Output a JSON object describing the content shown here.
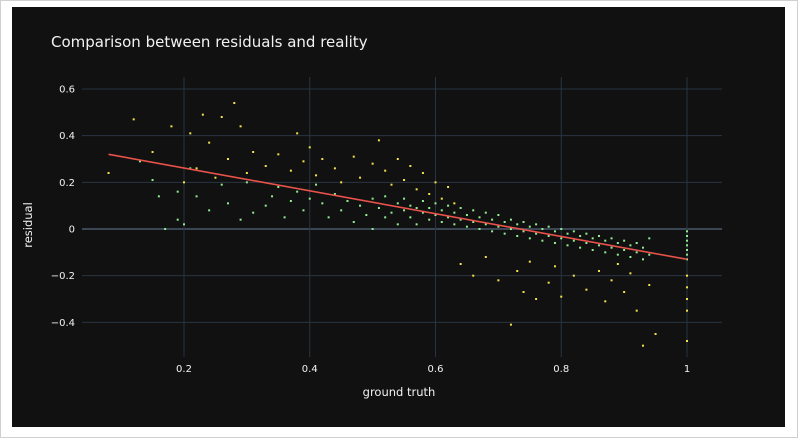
{
  "colors": {
    "background": "#111111",
    "grid": "#283442",
    "zeroline": "#3a4654",
    "text": "#f2f2f2",
    "green_points": "#90ee90",
    "yellow_points": "#f5e14a",
    "trend_line": "#e8524a"
  },
  "chart_data": {
    "type": "scatter",
    "title": "Comparison between residuals and reality",
    "xlabel": "ground truth",
    "ylabel": "residual",
    "xlim": [
      0.0,
      1.05
    ],
    "ylim": [
      -0.55,
      0.62
    ],
    "x_ticks": [
      0.2,
      0.4,
      0.6,
      0.8,
      1
    ],
    "x_tick_labels": [
      "0.2",
      "0.4",
      "0.6",
      "0.8",
      "1"
    ],
    "y_ticks": [
      -0.4,
      -0.2,
      0,
      0.2,
      0.4,
      0.6
    ],
    "y_tick_labels": [
      "−0.4",
      "−0.2",
      "0",
      "0.2",
      "0.4",
      "0.6"
    ],
    "grid": true,
    "legend": "none",
    "series": [
      {
        "color": "green_points",
        "points": [
          [
            0.13,
            0.29
          ],
          [
            0.15,
            0.21
          ],
          [
            0.16,
            0.14
          ],
          [
            0.17,
            0.0
          ],
          [
            0.19,
            0.16
          ],
          [
            0.19,
            0.04
          ],
          [
            0.2,
            0.02
          ],
          [
            0.21,
            0.26
          ],
          [
            0.22,
            0.14
          ],
          [
            0.24,
            0.08
          ],
          [
            0.26,
            0.19
          ],
          [
            0.27,
            0.11
          ],
          [
            0.29,
            0.04
          ],
          [
            0.3,
            0.2
          ],
          [
            0.31,
            0.07
          ],
          [
            0.33,
            0.1
          ],
          [
            0.34,
            0.14
          ],
          [
            0.35,
            0.18
          ],
          [
            0.36,
            0.05
          ],
          [
            0.37,
            0.12
          ],
          [
            0.38,
            0.16
          ],
          [
            0.39,
            0.08
          ],
          [
            0.4,
            0.13
          ],
          [
            0.41,
            0.19
          ],
          [
            0.42,
            0.11
          ],
          [
            0.43,
            0.05
          ],
          [
            0.44,
            0.15
          ],
          [
            0.45,
            0.08
          ],
          [
            0.46,
            0.12
          ],
          [
            0.47,
            0.03
          ],
          [
            0.48,
            0.1
          ],
          [
            0.49,
            0.06
          ],
          [
            0.5,
            0.13
          ],
          [
            0.5,
            0.0
          ],
          [
            0.51,
            0.09
          ],
          [
            0.52,
            0.05
          ],
          [
            0.52,
            0.14
          ],
          [
            0.53,
            0.07
          ],
          [
            0.54,
            0.11
          ],
          [
            0.54,
            0.02
          ],
          [
            0.55,
            0.08
          ],
          [
            0.55,
            0.13
          ],
          [
            0.56,
            0.05
          ],
          [
            0.56,
            0.1
          ],
          [
            0.57,
            0.09
          ],
          [
            0.57,
            0.02
          ],
          [
            0.58,
            0.07
          ],
          [
            0.58,
            0.12
          ],
          [
            0.59,
            0.04
          ],
          [
            0.59,
            0.09
          ],
          [
            0.6,
            0.06
          ],
          [
            0.6,
            0.11
          ],
          [
            0.61,
            0.03
          ],
          [
            0.61,
            0.08
          ],
          [
            0.62,
            0.05
          ],
          [
            0.62,
            0.1
          ],
          [
            0.63,
            0.02
          ],
          [
            0.63,
            0.07
          ],
          [
            0.64,
            0.04
          ],
          [
            0.64,
            0.09
          ],
          [
            0.65,
            0.01
          ],
          [
            0.65,
            0.06
          ],
          [
            0.66,
            0.03
          ],
          [
            0.66,
            0.08
          ],
          [
            0.67,
            0.0
          ],
          [
            0.67,
            0.05
          ],
          [
            0.68,
            0.02
          ],
          [
            0.68,
            0.07
          ],
          [
            0.69,
            -0.01
          ],
          [
            0.69,
            0.04
          ],
          [
            0.7,
            0.01
          ],
          [
            0.7,
            0.06
          ],
          [
            0.71,
            -0.02
          ],
          [
            0.71,
            0.03
          ],
          [
            0.72,
            0.0
          ],
          [
            0.72,
            0.04
          ],
          [
            0.73,
            -0.03
          ],
          [
            0.73,
            0.02
          ],
          [
            0.74,
            -0.01
          ],
          [
            0.74,
            0.03
          ],
          [
            0.75,
            -0.04
          ],
          [
            0.75,
            0.01
          ],
          [
            0.76,
            -0.02
          ],
          [
            0.76,
            0.02
          ],
          [
            0.77,
            -0.05
          ],
          [
            0.77,
            0.0
          ],
          [
            0.78,
            -0.03
          ],
          [
            0.78,
            0.01
          ],
          [
            0.79,
            -0.06
          ],
          [
            0.79,
            -0.01
          ],
          [
            0.8,
            -0.04
          ],
          [
            0.8,
            0.0
          ],
          [
            0.81,
            -0.07
          ],
          [
            0.81,
            -0.02
          ],
          [
            0.82,
            -0.05
          ],
          [
            0.82,
            -0.01
          ],
          [
            0.83,
            -0.08
          ],
          [
            0.83,
            -0.03
          ],
          [
            0.84,
            -0.06
          ],
          [
            0.84,
            -0.02
          ],
          [
            0.85,
            -0.09
          ],
          [
            0.85,
            -0.04
          ],
          [
            0.86,
            -0.07
          ],
          [
            0.86,
            -0.03
          ],
          [
            0.87,
            -0.1
          ],
          [
            0.87,
            -0.05
          ],
          [
            0.88,
            -0.08
          ],
          [
            0.88,
            -0.04
          ],
          [
            0.89,
            -0.11
          ],
          [
            0.89,
            -0.06
          ],
          [
            0.9,
            -0.09
          ],
          [
            0.9,
            -0.05
          ],
          [
            0.91,
            -0.12
          ],
          [
            0.91,
            -0.07
          ],
          [
            0.92,
            -0.1
          ],
          [
            0.92,
            -0.06
          ],
          [
            0.93,
            -0.13
          ],
          [
            0.93,
            -0.08
          ],
          [
            0.94,
            -0.11
          ],
          [
            0.94,
            -0.04
          ],
          [
            1.0,
            -0.01
          ],
          [
            1.0,
            -0.03
          ],
          [
            1.0,
            -0.05
          ],
          [
            1.0,
            -0.07
          ],
          [
            1.0,
            -0.09
          ],
          [
            1.0,
            -0.11
          ],
          [
            1.0,
            -0.13
          ]
        ]
      },
      {
        "color": "yellow_points",
        "points": [
          [
            0.08,
            0.24
          ],
          [
            0.12,
            0.47
          ],
          [
            0.15,
            0.33
          ],
          [
            0.18,
            0.44
          ],
          [
            0.2,
            0.2
          ],
          [
            0.21,
            0.41
          ],
          [
            0.22,
            0.26
          ],
          [
            0.23,
            0.49
          ],
          [
            0.24,
            0.37
          ],
          [
            0.25,
            0.22
          ],
          [
            0.26,
            0.48
          ],
          [
            0.27,
            0.3
          ],
          [
            0.28,
            0.54
          ],
          [
            0.29,
            0.44
          ],
          [
            0.3,
            0.24
          ],
          [
            0.31,
            0.33
          ],
          [
            0.33,
            0.27
          ],
          [
            0.35,
            0.32
          ],
          [
            0.37,
            0.25
          ],
          [
            0.38,
            0.41
          ],
          [
            0.39,
            0.29
          ],
          [
            0.4,
            0.35
          ],
          [
            0.41,
            0.23
          ],
          [
            0.42,
            0.3
          ],
          [
            0.44,
            0.26
          ],
          [
            0.45,
            0.2
          ],
          [
            0.47,
            0.31
          ],
          [
            0.48,
            0.22
          ],
          [
            0.5,
            0.28
          ],
          [
            0.51,
            0.38
          ],
          [
            0.52,
            0.25
          ],
          [
            0.53,
            0.19
          ],
          [
            0.54,
            0.3
          ],
          [
            0.55,
            0.21
          ],
          [
            0.56,
            0.27
          ],
          [
            0.57,
            0.17
          ],
          [
            0.58,
            0.24
          ],
          [
            0.59,
            0.15
          ],
          [
            0.6,
            0.2
          ],
          [
            0.61,
            0.13
          ],
          [
            0.62,
            0.18
          ],
          [
            0.63,
            0.11
          ],
          [
            0.64,
            -0.15
          ],
          [
            0.66,
            -0.2
          ],
          [
            0.68,
            -0.12
          ],
          [
            0.7,
            -0.22
          ],
          [
            0.72,
            -0.41
          ],
          [
            0.73,
            -0.18
          ],
          [
            0.74,
            -0.27
          ],
          [
            0.75,
            -0.14
          ],
          [
            0.76,
            -0.3
          ],
          [
            0.78,
            -0.23
          ],
          [
            0.79,
            -0.16
          ],
          [
            0.8,
            -0.29
          ],
          [
            0.82,
            -0.2
          ],
          [
            0.84,
            -0.26
          ],
          [
            0.86,
            -0.18
          ],
          [
            0.87,
            -0.31
          ],
          [
            0.88,
            -0.22
          ],
          [
            0.89,
            -0.15
          ],
          [
            0.9,
            -0.27
          ],
          [
            0.91,
            -0.19
          ],
          [
            0.92,
            -0.35
          ],
          [
            0.93,
            -0.5
          ],
          [
            0.94,
            -0.24
          ],
          [
            0.95,
            -0.45
          ],
          [
            1.0,
            -0.2
          ],
          [
            1.0,
            -0.25
          ],
          [
            1.0,
            -0.3
          ],
          [
            1.0,
            -0.35
          ],
          [
            1.0,
            -0.48
          ]
        ]
      }
    ],
    "trend_line": {
      "x": [
        0.08,
        1.0
      ],
      "y": [
        0.32,
        -0.13
      ]
    }
  }
}
